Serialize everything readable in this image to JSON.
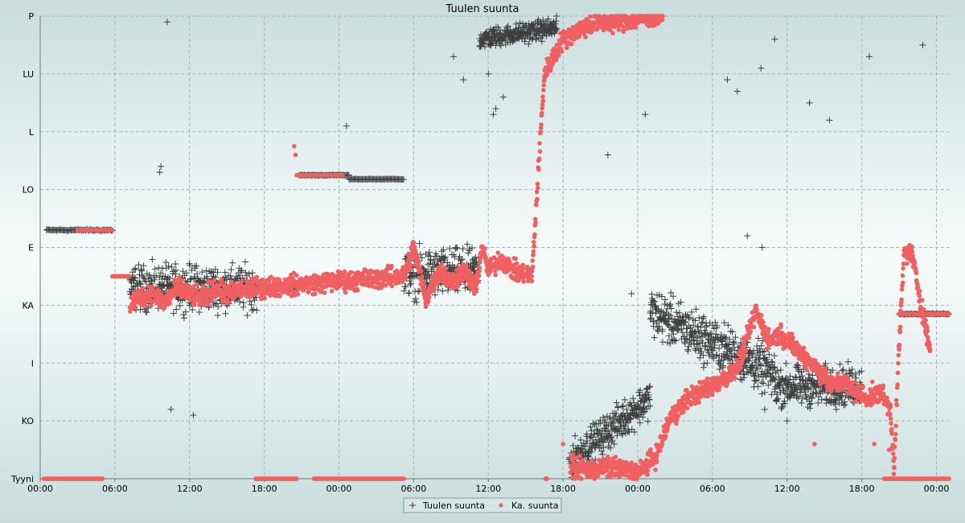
{
  "chart_data": {
    "type": "scatter",
    "title": "Tuulen suunta",
    "y_categories": [
      "Tyyni",
      "KO",
      "I",
      "KA",
      "E",
      "LO",
      "L",
      "LU",
      "P"
    ],
    "x_tick_labels": [
      "00:00",
      "06:00",
      "12:00",
      "18:00",
      "00:00",
      "06:00",
      "12:00",
      "18:00",
      "00:00",
      "06:00",
      "12:00",
      "18:00",
      "00:00"
    ],
    "x_range_hours": [
      0,
      73
    ],
    "y_range": [
      0,
      8
    ],
    "grid": true,
    "legend_position": "bottom-center",
    "series": [
      {
        "name": "Tuulen suunta",
        "marker": "plus",
        "color": "#3f3f3f",
        "segments": [
          {
            "x": [
              0.5,
              5.8
            ],
            "y": [
              4.3,
              4.3
            ],
            "spread": 0.02
          },
          {
            "x": [
              7.2,
              17.4
            ],
            "y": [
              3.3,
              3.3
            ],
            "spread": 0.55
          },
          {
            "x": [
              17.4,
              20.8
            ],
            "y": [
              3.3,
              3.3
            ],
            "spread": 0.01
          },
          {
            "x": [
              20.8,
              24.8
            ],
            "y": [
              5.25,
              5.25
            ],
            "spread": 0.01
          },
          {
            "x": [
              24.8,
              29.2
            ],
            "y": [
              5.18,
              5.18
            ],
            "spread": 0.01
          },
          {
            "x": [
              29.2,
              35.2
            ],
            "y": [
              3.55,
              3.55
            ],
            "spread": 0.6
          },
          {
            "x": [
              35.3,
              41.5
            ],
            "y": [
              7.6,
              7.8
            ],
            "spread": 0.25
          },
          {
            "x": [
              42.5,
              49.0
            ],
            "y": [
              0.3,
              1.4
            ],
            "spread": 0.45
          },
          {
            "x": [
              49.0,
              59.0
            ],
            "y": [
              2.9,
              1.8
            ],
            "spread": 0.6
          },
          {
            "x": [
              59.0,
              66.0
            ],
            "y": [
              1.6,
              1.6
            ],
            "spread": 0.5
          },
          {
            "x": [
              69.0,
              73.0
            ],
            "y": [
              2.85,
              2.85
            ],
            "spread": 0.01
          }
        ],
        "points": [
          [
            10.2,
            7.9
          ],
          [
            9.7,
            5.4
          ],
          [
            9.6,
            5.3
          ],
          [
            10.5,
            1.2
          ],
          [
            12.3,
            1.1
          ],
          [
            33.2,
            7.3
          ],
          [
            34.0,
            6.9
          ],
          [
            36.0,
            7.0
          ],
          [
            37.2,
            6.6
          ],
          [
            36.6,
            6.4
          ],
          [
            36.4,
            6.3
          ],
          [
            45.6,
            5.6
          ],
          [
            48.6,
            6.3
          ],
          [
            55.2,
            6.9
          ],
          [
            56.0,
            6.7
          ],
          [
            57.9,
            7.1
          ],
          [
            59.0,
            7.6
          ],
          [
            61.8,
            6.5
          ],
          [
            63.4,
            6.2
          ],
          [
            66.6,
            7.3
          ],
          [
            70.9,
            7.5
          ],
          [
            56.8,
            4.2
          ],
          [
            58.0,
            4.0
          ],
          [
            58.2,
            1.2
          ],
          [
            60.0,
            1.0
          ],
          [
            47.5,
            3.2
          ],
          [
            24.6,
            6.1
          ]
        ]
      },
      {
        "name": "Ka. suunta",
        "marker": "dot",
        "color": "#f06060",
        "segments": [
          {
            "x": [
              0.3,
              5.0
            ],
            "y": [
              0.0,
              0.0
            ]
          },
          {
            "x": [
              3.0,
              5.8
            ],
            "y": [
              4.3,
              4.3
            ]
          },
          {
            "x": [
              5.8,
              7.2
            ],
            "y": [
              3.5,
              3.5
            ]
          },
          {
            "x": [
              17.3,
              20.6
            ],
            "y": [
              0.0,
              0.0
            ]
          },
          {
            "x": [
              20.6,
              24.3
            ],
            "y": [
              5.25,
              5.25
            ]
          },
          {
            "x": [
              22.0,
              29.2
            ],
            "y": [
              0.0,
              0.0
            ]
          },
          {
            "x": [
              40.6,
              40.7
            ],
            "y": [
              0.0,
              0.0
            ]
          },
          {
            "x": [
              67.8,
              73.0
            ],
            "y": [
              0.0,
              0.0
            ]
          },
          {
            "x": [
              69.0,
              73.0
            ],
            "y": [
              2.85,
              2.85
            ]
          }
        ],
        "curve": [
          [
            7.2,
            3.0
          ],
          [
            8.0,
            3.15
          ],
          [
            9.0,
            3.2
          ],
          [
            10.0,
            3.05
          ],
          [
            11.0,
            3.3
          ],
          [
            12.0,
            3.2
          ],
          [
            13.0,
            3.1
          ],
          [
            14.0,
            3.3
          ],
          [
            15.0,
            3.2
          ],
          [
            16.0,
            3.25
          ],
          [
            17.3,
            3.3
          ],
          [
            29.2,
            3.5
          ],
          [
            30.0,
            4.0
          ],
          [
            31.0,
            3.1
          ],
          [
            32.0,
            3.6
          ],
          [
            33.0,
            3.4
          ],
          [
            34.0,
            3.6
          ],
          [
            35.0,
            3.3
          ],
          [
            35.5,
            4.0
          ],
          [
            36.0,
            3.6
          ],
          [
            37.0,
            3.8
          ],
          [
            38.0,
            3.6
          ],
          [
            39.5,
            3.5
          ],
          [
            40.5,
            7.0
          ],
          [
            42.0,
            7.6
          ],
          [
            44.0,
            7.85
          ],
          [
            46.0,
            7.9
          ],
          [
            48.0,
            7.95
          ],
          [
            50.0,
            8.0
          ],
          [
            42.6,
            0.2
          ],
          [
            44.0,
            0.15
          ],
          [
            46.0,
            0.2
          ],
          [
            48.0,
            0.1
          ],
          [
            49.5,
            0.4
          ],
          [
            50.5,
            1.0
          ],
          [
            52.0,
            1.4
          ],
          [
            54.0,
            1.6
          ],
          [
            56.0,
            1.9
          ],
          [
            57.5,
            2.9
          ],
          [
            58.5,
            2.4
          ],
          [
            59.5,
            2.5
          ],
          [
            60.5,
            2.3
          ],
          [
            61.5,
            2.1
          ],
          [
            62.5,
            1.9
          ],
          [
            63.5,
            1.6
          ],
          [
            64.5,
            1.7
          ],
          [
            65.5,
            1.5
          ],
          [
            66.5,
            1.4
          ],
          [
            67.5,
            1.5
          ],
          [
            68.3,
            1.2
          ],
          [
            68.6,
            0.2
          ],
          [
            69.0,
            2.3
          ],
          [
            69.4,
            3.9
          ],
          [
            70.0,
            3.9
          ],
          [
            71.5,
            2.2
          ]
        ],
        "points": [
          [
            20.4,
            5.75
          ],
          [
            20.5,
            5.6
          ],
          [
            42.0,
            0.6
          ],
          [
            62.2,
            0.6
          ],
          [
            67.0,
            0.6
          ],
          [
            68.2,
            0.5
          ],
          [
            74.0,
            0.0
          ]
        ]
      }
    ]
  }
}
